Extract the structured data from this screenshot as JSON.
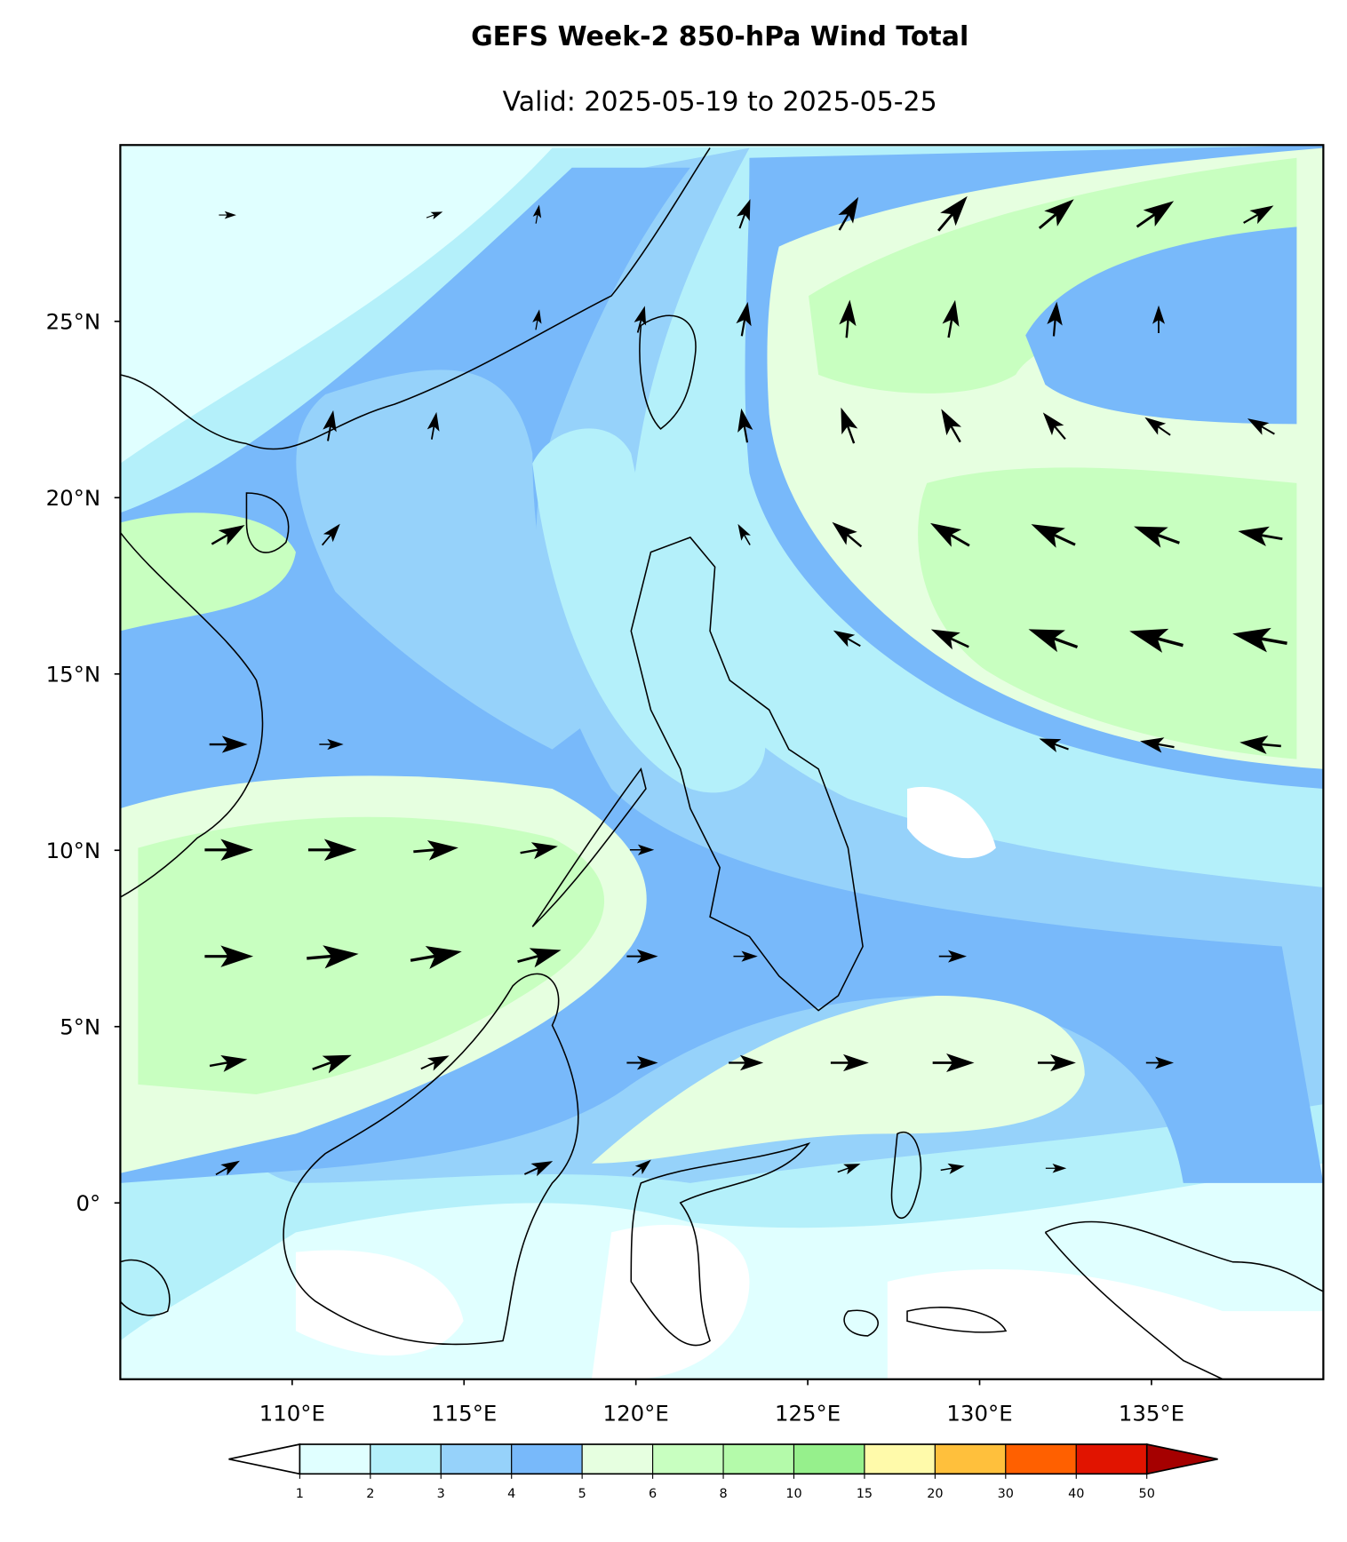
{
  "chart_data": {
    "type": "contour-map",
    "title": "GEFS Week-2 850-hPa Wind Total",
    "subtitle": "Valid: 2025-05-19 to 2025-05-25",
    "xlim": [
      105,
      140
    ],
    "ylim": [
      -5,
      30
    ],
    "xticks": [
      {
        "value": 110,
        "label": "110°E"
      },
      {
        "value": 115,
        "label": "115°E"
      },
      {
        "value": 120,
        "label": "120°E"
      },
      {
        "value": 125,
        "label": "125°E"
      },
      {
        "value": 130,
        "label": "130°E"
      },
      {
        "value": 135,
        "label": "135°E"
      }
    ],
    "yticks": [
      {
        "value": 0,
        "label": "0°"
      },
      {
        "value": 5,
        "label": "5°N"
      },
      {
        "value": 10,
        "label": "10°N"
      },
      {
        "value": 15,
        "label": "15°N"
      },
      {
        "value": 20,
        "label": "20°N"
      },
      {
        "value": 25,
        "label": "25°N"
      }
    ],
    "colorbar": {
      "levels": [
        1,
        2,
        3,
        4,
        5,
        6,
        8,
        10,
        15,
        20,
        30,
        40,
        50
      ],
      "colors": [
        "#e0ffff",
        "#b4f0fa",
        "#96d2fa",
        "#78b9fa",
        "#e6ffe0",
        "#c8ffc0",
        "#b4faaa",
        "#96f08c",
        "#fffaaa",
        "#ffc03c",
        "#ff6000",
        "#e11400"
      ],
      "under_color": "#ffffff",
      "over_color": "#a50000"
    }
  }
}
